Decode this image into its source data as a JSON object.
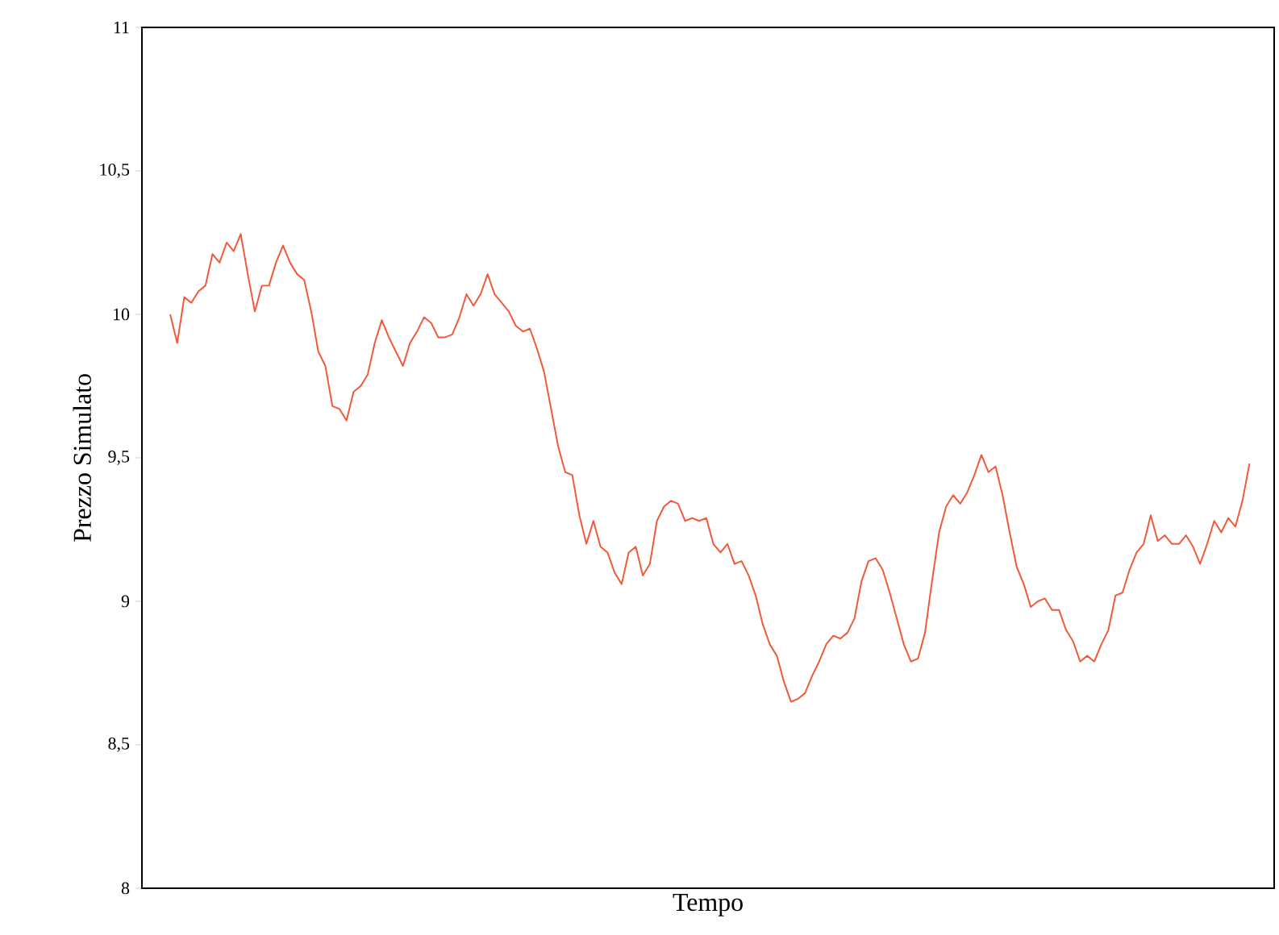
{
  "chart_data": {
    "type": "line",
    "xlabel": "Tempo",
    "ylabel": "Prezzo Simulato",
    "ylim": [
      8,
      11
    ],
    "yticks": [
      8,
      {
        "value": 8.5,
        "label": "8,5"
      },
      9,
      {
        "value": 9.5,
        "label": "9,5"
      },
      10,
      {
        "value": 10.5,
        "label": "10,5"
      },
      11
    ],
    "categories": [
      null,
      null,
      null,
      null,
      null,
      null,
      null,
      null,
      null,
      null,
      null,
      null,
      null,
      null,
      null,
      null,
      null,
      null,
      null,
      null,
      null,
      null,
      null,
      null,
      null,
      null,
      null,
      null,
      null,
      null,
      null,
      null,
      null,
      null,
      null,
      null,
      null,
      null,
      null,
      null,
      null,
      null,
      null,
      null,
      null,
      null,
      null,
      null,
      null,
      null,
      null,
      null,
      null,
      null,
      null,
      null,
      null,
      null,
      null,
      null,
      null,
      null,
      null,
      null,
      null,
      null,
      null,
      null,
      null,
      null,
      null,
      null,
      null,
      null,
      null,
      null,
      null,
      null,
      null,
      null,
      null,
      null,
      null,
      null,
      null,
      null,
      null,
      null,
      null,
      null,
      null,
      null,
      null,
      null,
      null,
      null,
      null,
      null,
      null,
      null,
      null,
      null,
      null,
      null,
      null,
      null,
      null,
      null,
      null,
      null,
      null,
      null,
      null,
      null,
      null,
      null,
      null,
      null,
      null,
      null,
      null,
      null,
      null,
      null,
      null,
      null,
      null,
      null,
      null,
      null,
      null,
      null,
      null,
      null,
      null,
      null,
      null,
      null,
      null,
      null,
      null,
      null,
      null,
      null,
      null,
      null,
      null,
      null,
      null,
      null,
      null,
      null,
      null,
      null
    ],
    "series": [
      {
        "color": "#f05a3c",
        "values": [
          10.0,
          9.9,
          10.06,
          10.04,
          10.08,
          10.1,
          10.21,
          10.18,
          10.25,
          10.22,
          10.28,
          10.14,
          10.01,
          10.1,
          10.1,
          10.18,
          10.24,
          10.18,
          10.14,
          10.12,
          10.01,
          9.87,
          9.82,
          9.68,
          9.67,
          9.63,
          9.73,
          9.75,
          9.79,
          9.9,
          9.98,
          9.92,
          9.87,
          9.82,
          9.9,
          9.94,
          9.99,
          9.97,
          9.92,
          9.92,
          9.93,
          9.99,
          10.07,
          10.03,
          10.07,
          10.14,
          10.07,
          10.04,
          10.01,
          9.96,
          9.94,
          9.95,
          9.88,
          9.8,
          9.67,
          9.54,
          9.45,
          9.44,
          9.3,
          9.2,
          9.28,
          9.19,
          9.17,
          9.1,
          9.06,
          9.17,
          9.19,
          9.09,
          9.13,
          9.28,
          9.33,
          9.35,
          9.34,
          9.28,
          9.29,
          9.28,
          9.29,
          9.2,
          9.17,
          9.2,
          9.13,
          9.14,
          9.09,
          9.02,
          8.92,
          8.85,
          8.81,
          8.72,
          8.65,
          8.66,
          8.68,
          8.74,
          8.79,
          8.85,
          8.88,
          8.87,
          8.89,
          8.94,
          9.07,
          9.14,
          9.15,
          9.11,
          9.03,
          8.94,
          8.85,
          8.79,
          8.8,
          8.89,
          9.07,
          9.24,
          9.33,
          9.37,
          9.34,
          9.38,
          9.44,
          9.51,
          9.45,
          9.47,
          9.37,
          9.24,
          9.12,
          9.06,
          8.98,
          9.0,
          9.01,
          8.97,
          8.97,
          8.9,
          8.86,
          8.79,
          8.81,
          8.79,
          8.85,
          8.9,
          9.02,
          9.03,
          9.11,
          9.17,
          9.2,
          9.3,
          9.21,
          9.23,
          9.2,
          9.2,
          9.23,
          9.19,
          9.13,
          9.2,
          9.28,
          9.24,
          9.29,
          9.26,
          9.35,
          9.48
        ]
      }
    ]
  }
}
